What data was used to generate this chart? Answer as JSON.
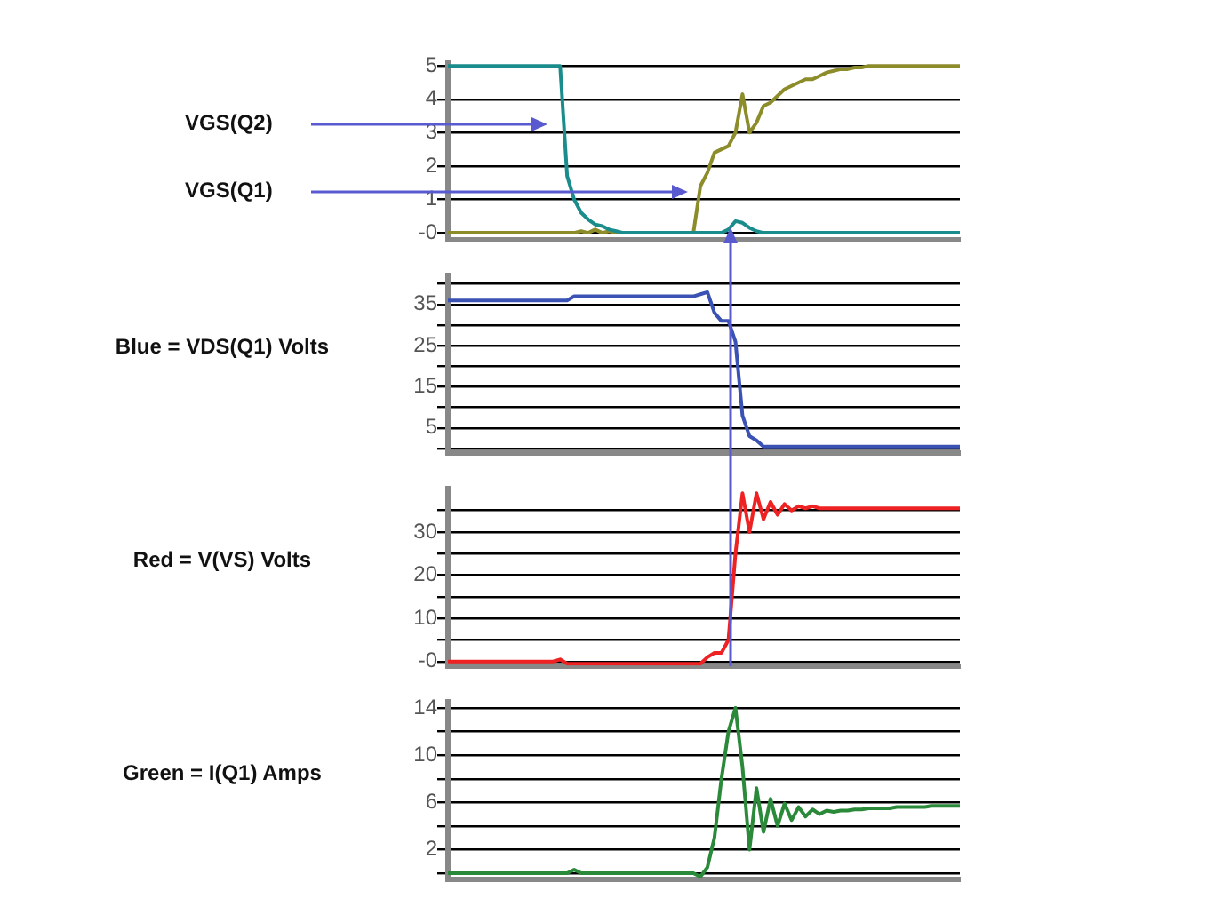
{
  "chart_data": [
    {
      "type": "line",
      "categories": [
        null,
        null,
        null,
        null,
        null,
        null,
        null,
        null,
        null,
        null,
        null,
        null,
        null,
        null,
        null,
        null,
        null,
        null,
        null,
        null,
        null,
        null,
        null,
        null,
        null,
        null,
        null,
        null,
        null,
        null,
        null,
        null,
        null,
        null,
        null,
        null,
        null,
        null,
        null,
        null,
        null,
        null,
        null,
        null,
        null,
        null,
        null,
        null,
        null,
        null,
        null,
        null,
        null,
        null,
        null,
        null,
        null,
        null,
        null,
        null,
        null,
        null,
        null,
        null,
        null,
        null,
        null,
        null,
        null,
        null,
        null,
        null,
        null,
        null
      ],
      "series": [
        {
          "color": "#1a8c8c",
          "values": [
            5,
            5,
            5,
            5,
            5,
            5,
            5,
            5,
            5,
            5,
            5,
            5,
            5,
            5,
            5,
            5,
            5,
            1.7,
            1.0,
            0.6,
            0.4,
            0.25,
            0.2,
            0.1,
            0.05,
            0,
            0,
            0,
            0,
            0,
            0,
            0,
            0,
            0,
            0,
            0,
            0,
            0,
            0,
            0,
            0.1,
            0.35,
            0.3,
            0.15,
            0.05,
            0,
            0,
            0,
            0,
            0,
            0,
            0,
            0,
            0,
            0,
            0,
            0,
            0,
            0,
            0,
            0,
            0,
            0,
            0,
            0,
            0,
            0,
            0,
            0,
            0,
            0,
            0,
            0,
            0
          ]
        },
        {
          "color": "#8c8c2a",
          "values": [
            0,
            0,
            0,
            0,
            0,
            0,
            0,
            0,
            0,
            0,
            0,
            0,
            0,
            0,
            0,
            0,
            0,
            0,
            0,
            0.05,
            0,
            0.1,
            0,
            0.05,
            0,
            0,
            0,
            0,
            0,
            0,
            0,
            0,
            0,
            0,
            0,
            0,
            1.4,
            1.8,
            2.4,
            2.5,
            2.6,
            3.0,
            4.15,
            3.0,
            3.3,
            3.8,
            3.9,
            4.1,
            4.3,
            4.4,
            4.5,
            4.6,
            4.6,
            4.7,
            4.8,
            4.85,
            4.9,
            4.9,
            4.95,
            4.95,
            5,
            5,
            5,
            5,
            5,
            5,
            5,
            5,
            5,
            5,
            5,
            5,
            5,
            5
          ]
        }
      ],
      "ylim": [
        -0.2,
        5.1
      ],
      "yticks": [
        5,
        4,
        3,
        2,
        1,
        {
          "value": 0,
          "label": "-0"
        }
      ],
      "grid": "y",
      "tick_labels": "y",
      "legend": false,
      "marker": "none",
      "line_style": "solid",
      "annotations": [
        "VGS(Q2)",
        "VGS(Q1)"
      ]
    },
    {
      "type": "line",
      "categories": [
        null,
        null,
        null,
        null,
        null,
        null,
        null,
        null,
        null,
        null,
        null,
        null,
        null,
        null,
        null,
        null,
        null,
        null,
        null,
        null,
        null,
        null,
        null,
        null,
        null,
        null,
        null,
        null,
        null,
        null,
        null,
        null,
        null,
        null,
        null,
        null,
        null,
        null,
        null,
        null,
        null,
        null,
        null,
        null,
        null,
        null,
        null,
        null,
        null,
        null,
        null,
        null,
        null,
        null,
        null,
        null,
        null,
        null,
        null,
        null,
        null,
        null,
        null,
        null,
        null,
        null,
        null,
        null,
        null,
        null,
        null,
        null,
        null,
        null
      ],
      "series": [
        {
          "color": "#3a52b4",
          "values": [
            36,
            36,
            36,
            36,
            36,
            36,
            36,
            36,
            36,
            36,
            36,
            36,
            36,
            36,
            36,
            36,
            36,
            36,
            37,
            37,
            37,
            37,
            37,
            37,
            37,
            37,
            37,
            37,
            37,
            37,
            37,
            37,
            37,
            37,
            37,
            37,
            37.5,
            38,
            33,
            31,
            31,
            26,
            8,
            3,
            2,
            0.5,
            0.5,
            0.5,
            0.5,
            0.5,
            0.5,
            0.5,
            0.5,
            0.5,
            0.5,
            0.5,
            0.5,
            0.5,
            0.5,
            0.5,
            0.5,
            0.5,
            0.5,
            0.5,
            0.5,
            0.5,
            0.5,
            0.5,
            0.5,
            0.5,
            0.5,
            0.5,
            0.5,
            0.5
          ]
        }
      ],
      "ylim": [
        -1,
        42
      ],
      "yticks": [
        {
          "value": 40,
          "label": null
        },
        35,
        {
          "value": 30,
          "label": null
        },
        25,
        {
          "value": 20,
          "label": null
        },
        15,
        {
          "value": 10,
          "label": null
        },
        5,
        {
          "value": 0,
          "label": null
        }
      ],
      "grid": "y",
      "tick_labels": "y",
      "legend": false,
      "marker": "none",
      "line_style": "solid",
      "ylabel": "Blue = VDS(Q1) Volts"
    },
    {
      "type": "line",
      "categories": [
        null,
        null,
        null,
        null,
        null,
        null,
        null,
        null,
        null,
        null,
        null,
        null,
        null,
        null,
        null,
        null,
        null,
        null,
        null,
        null,
        null,
        null,
        null,
        null,
        null,
        null,
        null,
        null,
        null,
        null,
        null,
        null,
        null,
        null,
        null,
        null,
        null,
        null,
        null,
        null,
        null,
        null,
        null,
        null,
        null,
        null,
        null,
        null,
        null,
        null,
        null,
        null,
        null,
        null,
        null,
        null,
        null,
        null,
        null,
        null,
        null,
        null,
        null,
        null,
        null,
        null,
        null,
        null,
        null,
        null,
        null,
        null,
        null,
        null
      ],
      "series": [
        {
          "color": "#ee2222",
          "values": [
            0,
            0,
            0,
            0,
            0,
            0,
            0,
            0,
            0,
            0,
            0,
            0,
            0,
            0,
            0,
            0,
            0.5,
            -0.5,
            -0.5,
            -0.5,
            -0.5,
            -0.5,
            -0.5,
            -0.5,
            -0.5,
            -0.5,
            -0.5,
            -0.5,
            -0.5,
            -0.5,
            -0.5,
            -0.5,
            -0.5,
            -0.5,
            -0.5,
            -0.5,
            -0.5,
            1,
            2,
            2,
            5,
            25,
            39,
            30,
            39,
            33,
            37,
            34,
            36.5,
            35,
            36,
            35.5,
            36,
            35.5,
            35.5,
            35.5,
            35.5,
            35.5,
            35.5,
            35.5,
            35.5,
            35.5,
            35.5,
            35.5,
            35.5,
            35.5,
            35.5,
            35.5,
            35.5,
            35.5,
            35.5,
            35.5,
            35.5,
            35.5
          ]
        }
      ],
      "ylim": [
        -1,
        40
      ],
      "yticks": [
        {
          "value": 35,
          "label": null
        },
        30,
        {
          "value": 25,
          "label": null
        },
        20,
        {
          "value": 15,
          "label": null
        },
        10,
        {
          "value": 5,
          "label": null
        },
        {
          "value": 0,
          "label": "-0"
        }
      ],
      "grid": "y",
      "tick_labels": "y",
      "legend": false,
      "marker": "none",
      "line_style": "solid",
      "ylabel": "Red = V(VS) Volts"
    },
    {
      "type": "line",
      "categories": [
        null,
        null,
        null,
        null,
        null,
        null,
        null,
        null,
        null,
        null,
        null,
        null,
        null,
        null,
        null,
        null,
        null,
        null,
        null,
        null,
        null,
        null,
        null,
        null,
        null,
        null,
        null,
        null,
        null,
        null,
        null,
        null,
        null,
        null,
        null,
        null,
        null,
        null,
        null,
        null,
        null,
        null,
        null,
        null,
        null,
        null,
        null,
        null,
        null,
        null,
        null,
        null,
        null,
        null,
        null,
        null,
        null,
        null,
        null,
        null,
        null,
        null,
        null,
        null,
        null,
        null,
        null,
        null,
        null,
        null,
        null,
        null,
        null,
        null
      ],
      "series": [
        {
          "color": "#2a8a3a",
          "values": [
            0,
            0,
            0,
            0,
            0,
            0,
            0,
            0,
            0,
            0,
            0,
            0,
            0,
            0,
            0,
            0,
            0,
            0,
            0.3,
            0,
            0,
            0,
            0,
            0,
            0,
            0,
            0,
            0,
            0,
            0,
            0,
            0,
            0,
            0,
            0,
            0,
            -0.3,
            0.5,
            3,
            8,
            12,
            14,
            9,
            2,
            7.2,
            3.5,
            6.3,
            4,
            5.9,
            4.5,
            5.6,
            4.8,
            5.4,
            5,
            5.3,
            5.2,
            5.3,
            5.3,
            5.4,
            5.4,
            5.5,
            5.5,
            5.5,
            5.5,
            5.6,
            5.6,
            5.6,
            5.6,
            5.6,
            5.7,
            5.7,
            5.7,
            5.7,
            5.7
          ]
        }
      ],
      "ylim": [
        -0.5,
        14.5
      ],
      "yticks": [
        14,
        {
          "value": 12,
          "label": null
        },
        10,
        {
          "value": 8,
          "label": null
        },
        6,
        {
          "value": 4,
          "label": null
        },
        2,
        {
          "value": 0,
          "label": null
        }
      ],
      "grid": "y",
      "tick_labels": "y",
      "legend": false,
      "marker": "none",
      "line_style": "solid",
      "ylabel": "Green = I(Q1) Amps"
    }
  ]
}
